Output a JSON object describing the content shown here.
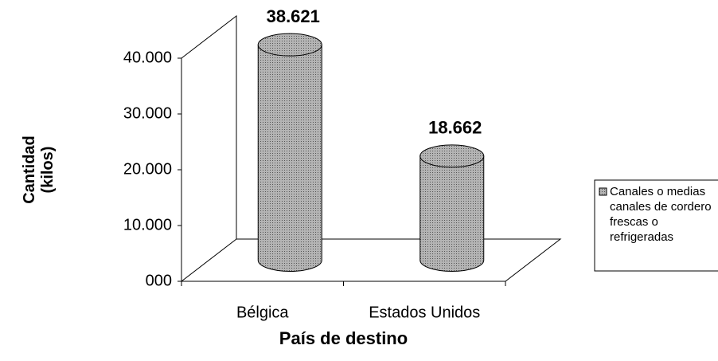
{
  "chart_data": {
    "type": "bar3d",
    "categories": [
      "Bélgica",
      "Estados Unidos"
    ],
    "series": [
      {
        "name": "Canales o medias canales de cordero frescas o refrigeradas",
        "color": "#a6a6a6",
        "values": [
          38621,
          18662
        ],
        "value_labels": [
          "38.621",
          "18.662"
        ]
      }
    ],
    "ylim": [
      0,
      40000
    ],
    "yticks": [
      {
        "value": 0,
        "label": "000"
      },
      {
        "value": 10000,
        "label": "10.000"
      },
      {
        "value": 20000,
        "label": "20.000"
      },
      {
        "value": 30000,
        "label": "30.000"
      },
      {
        "value": 40000,
        "label": "40.000"
      }
    ],
    "ylabel": "Cantidad (kilos)",
    "xlabel": "País de destino",
    "legend": "right"
  }
}
